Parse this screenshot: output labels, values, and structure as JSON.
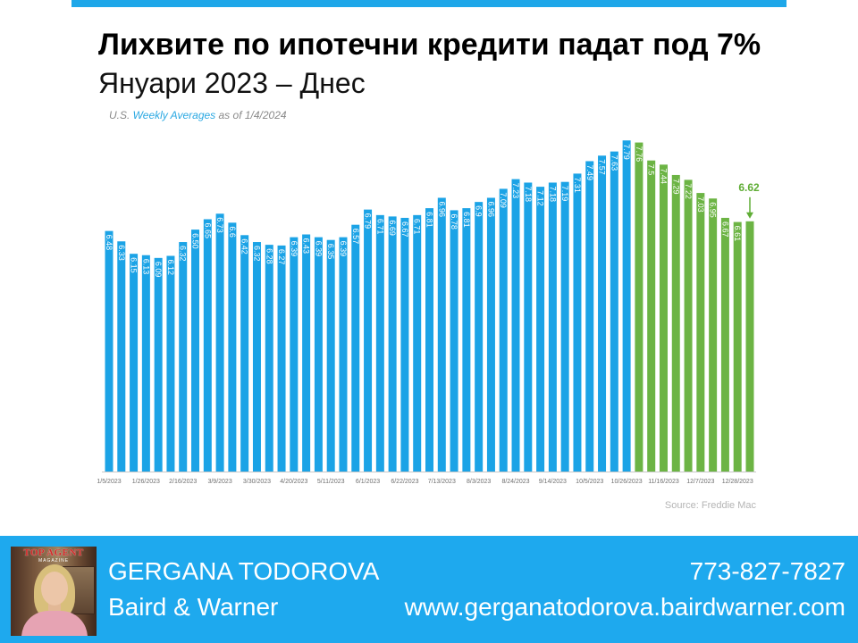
{
  "theme": {
    "accent": "#1ea7e9",
    "footer_band": "#1ea9ee",
    "footer_text": "#ffffff",
    "title_color": "#000000"
  },
  "chart_data": {
    "type": "bar",
    "title": "Лихвите по ипотечни кредити падат под 7%",
    "subtitle": "Януари 2023 – Днес",
    "note": {
      "prefix": "U.S. ",
      "highlight": "Weekly Averages",
      "suffix": " as of 1/4/2024"
    },
    "source": "Source: Freddie Mac",
    "xlabel": "",
    "ylabel": "",
    "ylim": [
      3,
      8
    ],
    "grid": false,
    "legend": "none",
    "categories": [
      "1/5/2023",
      "",
      "",
      "1/26/2023",
      "",
      "",
      "2/16/2023",
      "",
      "",
      "3/9/2023",
      "",
      "",
      "3/30/2023",
      "",
      "",
      "4/20/2023",
      "",
      "",
      "5/11/2023",
      "",
      "",
      "6/1/2023",
      "",
      "",
      "6/22/2023",
      "",
      "",
      "7/13/2023",
      "",
      "",
      "8/3/2023",
      "",
      "",
      "8/24/2023",
      "",
      "",
      "9/14/2023",
      "",
      "",
      "10/5/2023",
      "",
      "",
      "10/26/2023",
      "",
      "",
      "11/16/2023",
      "",
      "",
      "12/7/2023",
      "",
      "",
      "12/28/2023",
      ""
    ],
    "series": [
      {
        "color": "#1ba3e6",
        "values": [
          6.48,
          6.33,
          6.15,
          6.13,
          6.09,
          6.12,
          6.32,
          6.5,
          6.65,
          6.73,
          6.6,
          6.42,
          6.32,
          6.28,
          6.27,
          6.39,
          6.43,
          6.39,
          6.35,
          6.39,
          6.57,
          6.79,
          6.71,
          6.69,
          6.67,
          6.71,
          6.81,
          6.96,
          6.78,
          6.81,
          6.9,
          6.96,
          7.09,
          7.23,
          7.18,
          7.12,
          7.18,
          7.19,
          7.31,
          7.49,
          7.57,
          7.63,
          7.79,
          null,
          null,
          null,
          null,
          null,
          null,
          null,
          null,
          null,
          null
        ]
      },
      {
        "color": "#6cb444",
        "values": [
          null,
          null,
          null,
          null,
          null,
          null,
          null,
          null,
          null,
          null,
          null,
          null,
          null,
          null,
          null,
          null,
          null,
          null,
          null,
          null,
          null,
          null,
          null,
          null,
          null,
          null,
          null,
          null,
          null,
          null,
          null,
          null,
          null,
          null,
          null,
          null,
          null,
          null,
          null,
          null,
          null,
          null,
          null,
          7.76,
          7.5,
          7.44,
          7.29,
          7.22,
          7.03,
          6.95,
          6.67,
          6.61,
          6.62
        ]
      }
    ],
    "data_labels": [
      "6.48",
      "6.33",
      "6.15",
      "6.13",
      "6.09",
      "6.12",
      "6.32",
      "6.50",
      "6.65",
      "6.73",
      "6.6",
      "6.42",
      "6.32",
      "6.28",
      "6.27",
      "6.39",
      "6.43",
      "6.39",
      "6.35",
      "6.39",
      "6.57",
      "6.79",
      "6.71",
      "6.69",
      "6.67",
      "6.71",
      "6.81",
      "6.96",
      "6.78",
      "6.81",
      "6.9",
      "6.96",
      "7.09",
      "7.23",
      "7.18",
      "7.12",
      "7.18",
      "7.19",
      "7.31",
      "7.49",
      "7.57",
      "7.63",
      "7.79",
      "7.76",
      "7.5",
      "7.44",
      "7.29",
      "7.22",
      "7.03",
      "6.95",
      "6.67",
      "6.61",
      ""
    ],
    "annotation": {
      "text": "6.62",
      "color": "#5fad35",
      "arrow": "down"
    }
  },
  "footer": {
    "name": "GERGANA TODOROVA",
    "company": "Baird & Warner",
    "phone": "773-827-7827",
    "website": "www.gerganatodorova.bairdwarner.com",
    "photo_logo": {
      "line1": "TOP AGENT",
      "line2": "MAGAZINE"
    }
  }
}
